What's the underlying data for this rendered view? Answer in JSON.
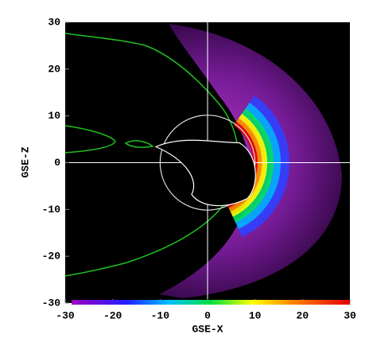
{
  "chart_data": {
    "type": "image",
    "xlabel": "GSE-X",
    "ylabel": "GSE-Z",
    "xlim": [
      -30,
      30
    ],
    "ylim": [
      -30,
      30
    ],
    "xticks": [
      -30,
      -20,
      -10,
      0,
      10,
      20,
      30
    ],
    "yticks": [
      -30,
      -20,
      -10,
      0,
      10,
      20,
      30
    ]
  }
}
